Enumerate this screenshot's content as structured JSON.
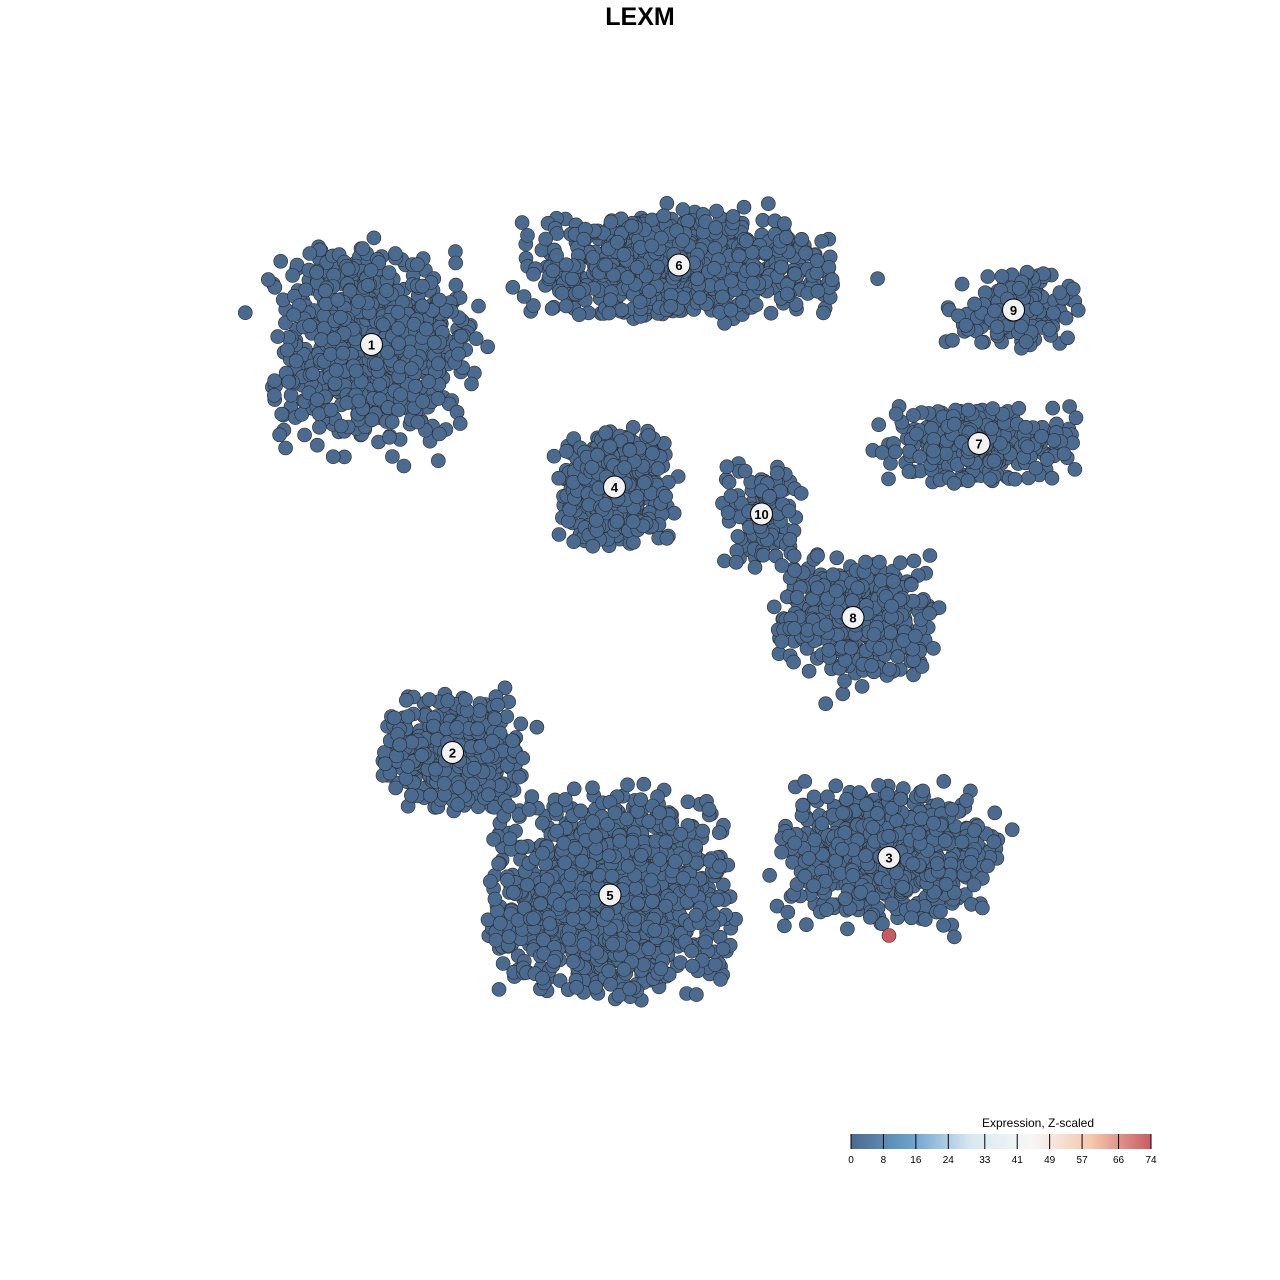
{
  "chart_data": {
    "type": "scatter",
    "title": "LEXM",
    "xlabel": "",
    "ylabel": "",
    "xlim": [
      -30,
      30
    ],
    "ylim": [
      -30,
      30
    ],
    "grid": false,
    "axes_visible": false,
    "point_color_low": "#4b6a8f",
    "point_stroke": "#2b2b2b",
    "clusters": [
      {
        "label": "1",
        "center": [
          -17.9,
          19.7
        ],
        "spread": [
          5.5,
          5.5
        ],
        "n": 900,
        "expression": 0
      },
      {
        "label": "6",
        "center": [
          2.6,
          25.0
        ],
        "spread": [
          8.5,
          2.8
        ],
        "n": 900,
        "expression": 0
      },
      {
        "label": "9",
        "center": [
          24.9,
          22.0
        ],
        "spread": [
          3.8,
          2.0
        ],
        "n": 180,
        "expression": 0
      },
      {
        "label": "7",
        "center": [
          22.6,
          13.1
        ],
        "spread": [
          5.5,
          2.2
        ],
        "n": 320,
        "expression": 0
      },
      {
        "label": "4",
        "center": [
          -1.7,
          10.2
        ],
        "spread": [
          3.0,
          3.2
        ],
        "n": 520,
        "expression": 0
      },
      {
        "label": "10",
        "center": [
          8.1,
          8.4
        ],
        "spread": [
          2.2,
          3.0
        ],
        "n": 120,
        "expression": 0
      },
      {
        "label": "8",
        "center": [
          14.2,
          1.5
        ],
        "spread": [
          4.5,
          3.5
        ],
        "n": 420,
        "expression": 0
      },
      {
        "label": "2",
        "center": [
          -12.5,
          -7.5
        ],
        "spread": [
          4.0,
          3.2
        ],
        "n": 420,
        "expression": 0
      },
      {
        "label": "3",
        "center": [
          16.6,
          -14.5
        ],
        "spread": [
          6.0,
          4.0
        ],
        "n": 700,
        "expression": 0
      },
      {
        "label": "5",
        "center": [
          -2.0,
          -17.0
        ],
        "spread": [
          6.5,
          5.5
        ],
        "n": 1400,
        "expression": 0
      }
    ],
    "highlighted_points": [
      {
        "x": 16.6,
        "y": -19.7,
        "expression": 74,
        "color": "#c85a62"
      }
    ],
    "legend": {
      "title": "Expression, Z-scaled",
      "placement": "bottom-right",
      "ticks": [
        "0",
        "8",
        "16",
        "24",
        "33",
        "41",
        "49",
        "57",
        "66",
        "74"
      ],
      "range": [
        0,
        74
      ],
      "colors": [
        "#4b6a8f",
        "#6aa2cc",
        "#d8e8f1",
        "#f7f7f7",
        "#f6c7ae",
        "#c85a62"
      ]
    }
  }
}
